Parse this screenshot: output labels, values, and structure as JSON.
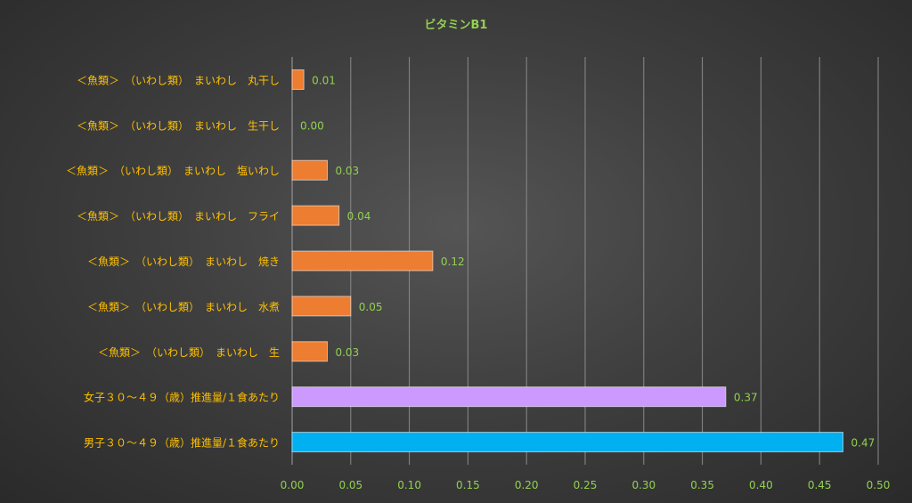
{
  "chart_data": {
    "type": "bar",
    "orientation": "horizontal",
    "title": "ビタミンB1",
    "categories": [
      "＜魚類＞　（いわし類）　まいわし　丸干し",
      "＜魚類＞　（いわし類）　まいわし　生干し",
      "＜魚類＞　（いわし類）　まいわし　塩いわし",
      "＜魚類＞　（いわし類）　まいわし　フライ",
      "＜魚類＞　（いわし類）　まいわし　焼き",
      "＜魚類＞　（いわし類）　まいわし　水煮",
      "＜魚類＞　（いわし類）　まいわし　生",
      "女子３０～４９（歳）推進量/１食あたり",
      "男子３０～４９（歳）推進量/１食あたり"
    ],
    "values": [
      0.01,
      0.0,
      0.03,
      0.04,
      0.12,
      0.05,
      0.03,
      0.37,
      0.47
    ],
    "data_labels": [
      "0.01",
      "0.00",
      "0.03",
      "0.04",
      "0.12",
      "0.05",
      "0.03",
      "0.37",
      "0.47"
    ],
    "bar_colors": [
      "#ed7d31",
      "#ed7d31",
      "#ed7d31",
      "#ed7d31",
      "#ed7d31",
      "#ed7d31",
      "#ed7d31",
      "#cc99ff",
      "#00b0f0"
    ],
    "xlim": [
      0,
      0.5
    ],
    "x_ticks": [
      "0.00",
      "0.05",
      "0.10",
      "0.15",
      "0.20",
      "0.25",
      "0.30",
      "0.35",
      "0.40",
      "0.45",
      "0.50"
    ],
    "x_tick_values": [
      0,
      0.05,
      0.1,
      0.15,
      0.2,
      0.25,
      0.3,
      0.35,
      0.4,
      0.45,
      0.5
    ],
    "grid": true,
    "legend": "none",
    "colors": {
      "title": "#92d050",
      "category_label": "#ffc000",
      "tick_label": "#92d050",
      "data_label": "#92d050",
      "gridline": "#8a8a8a",
      "axis": "#a0a0a0"
    }
  }
}
